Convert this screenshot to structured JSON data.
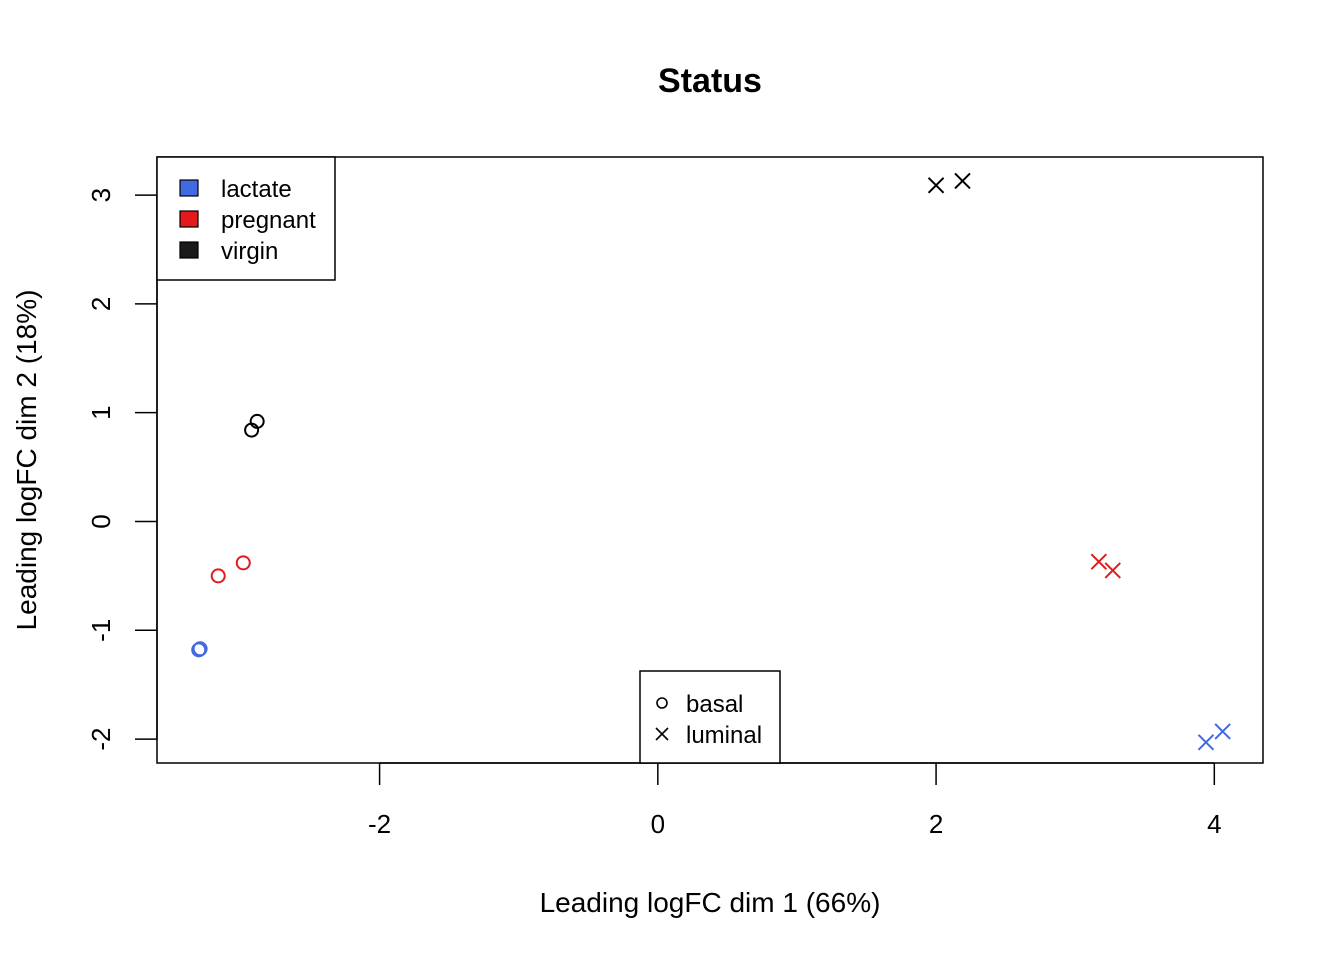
{
  "chart_data": {
    "type": "scatter",
    "title": "Status",
    "xlabel": "Leading logFC dim 1 (66%)",
    "ylabel": "Leading logFC dim 2 (18%)",
    "xlim": [
      -3.6,
      4.35
    ],
    "ylim": [
      -2.22,
      3.35
    ],
    "x_ticks": [
      "-2",
      "0",
      "2",
      "4"
    ],
    "y_ticks": [
      "-2",
      "-1",
      "0",
      "1",
      "2",
      "3"
    ],
    "x_tick_values": [
      -2,
      0,
      2,
      4
    ],
    "y_tick_values": [
      -2,
      -1,
      0,
      1,
      2,
      3
    ],
    "grid": false,
    "colors": {
      "lactate": "#4169E1",
      "pregnant": "#E31A1C",
      "virgin": "#000000"
    },
    "color_legend": {
      "position": "top-left",
      "entries": [
        {
          "label": "lactate",
          "color": "#4169E1"
        },
        {
          "label": "pregnant",
          "color": "#E31A1C"
        },
        {
          "label": "virgin",
          "color": "#1a1a1a"
        }
      ]
    },
    "shape_legend": {
      "position": "bottom-center",
      "entries": [
        {
          "label": "basal",
          "shape": "circle"
        },
        {
          "label": "luminal",
          "shape": "cross"
        }
      ]
    },
    "points": [
      {
        "x": -3.3,
        "y": -1.18,
        "status": "lactate",
        "type": "basal"
      },
      {
        "x": -3.29,
        "y": -1.17,
        "status": "lactate",
        "type": "basal"
      },
      {
        "x": -3.16,
        "y": -0.5,
        "status": "pregnant",
        "type": "basal"
      },
      {
        "x": -2.98,
        "y": -0.38,
        "status": "pregnant",
        "type": "basal"
      },
      {
        "x": -2.92,
        "y": 0.84,
        "status": "virgin",
        "type": "basal"
      },
      {
        "x": -2.88,
        "y": 0.92,
        "status": "virgin",
        "type": "basal"
      },
      {
        "x": 2.0,
        "y": 3.09,
        "status": "virgin",
        "type": "luminal"
      },
      {
        "x": 2.19,
        "y": 3.13,
        "status": "virgin",
        "type": "luminal"
      },
      {
        "x": 3.17,
        "y": -0.37,
        "status": "pregnant",
        "type": "luminal"
      },
      {
        "x": 3.27,
        "y": -0.45,
        "status": "pregnant",
        "type": "luminal"
      },
      {
        "x": 3.94,
        "y": -2.03,
        "status": "lactate",
        "type": "luminal"
      },
      {
        "x": 4.06,
        "y": -1.93,
        "status": "lactate",
        "type": "luminal"
      }
    ]
  }
}
